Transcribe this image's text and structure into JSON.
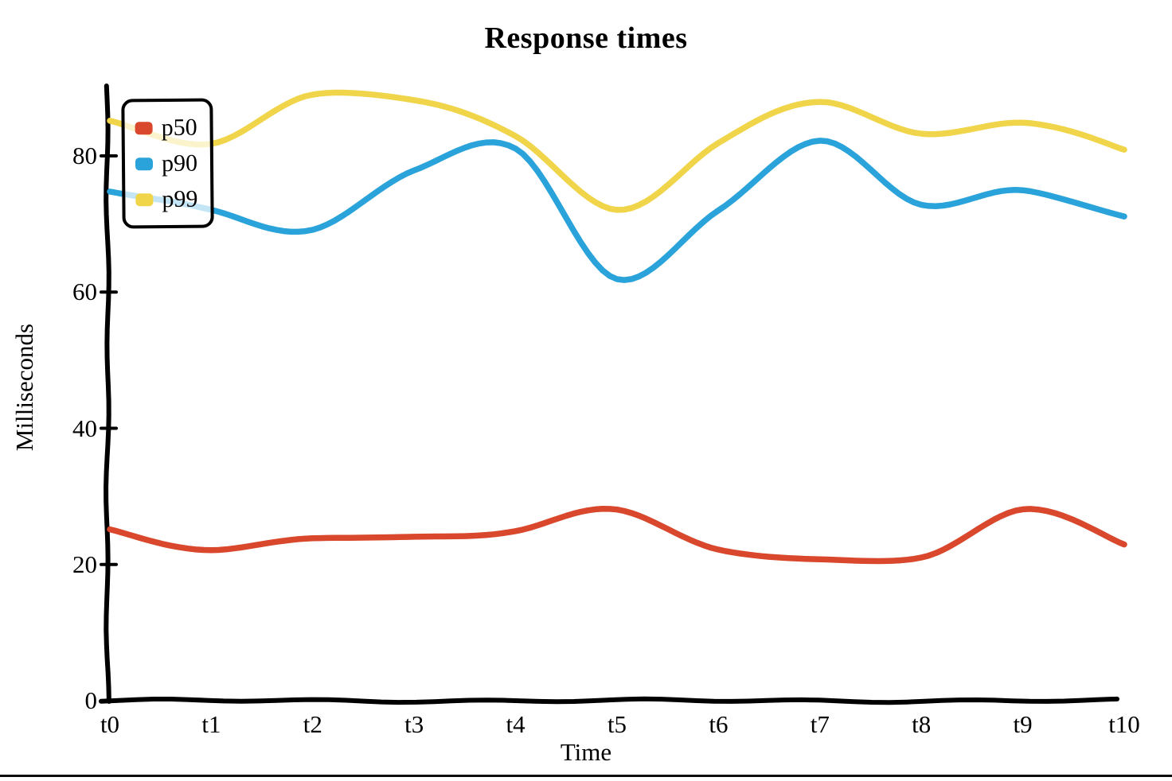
{
  "chart_data": {
    "type": "line",
    "style": "hand-drawn-xkcd",
    "title": "Response times",
    "xlabel": "Time",
    "ylabel": "Milliseconds",
    "categories": [
      "t0",
      "t1",
      "t2",
      "t3",
      "t4",
      "t5",
      "t6",
      "t7",
      "t8",
      "t9",
      "t10"
    ],
    "yticks": [
      0,
      20,
      40,
      60,
      80
    ],
    "ylim": [
      0,
      92
    ],
    "grid": false,
    "legend_position": "top-left",
    "axis_color": "#000000",
    "series": [
      {
        "name": "p50",
        "color": "#d9472c",
        "values": [
          25,
          22,
          24,
          24,
          25,
          28,
          22,
          21,
          21,
          28,
          23
        ]
      },
      {
        "name": "p90",
        "color": "#2aa3db",
        "values": [
          75,
          72,
          69,
          78,
          81,
          62,
          72,
          82,
          73,
          75,
          71
        ]
      },
      {
        "name": "p99",
        "color": "#f0d54a",
        "values": [
          85,
          82,
          89,
          88,
          83,
          72,
          82,
          88,
          83,
          85,
          81
        ]
      }
    ]
  }
}
